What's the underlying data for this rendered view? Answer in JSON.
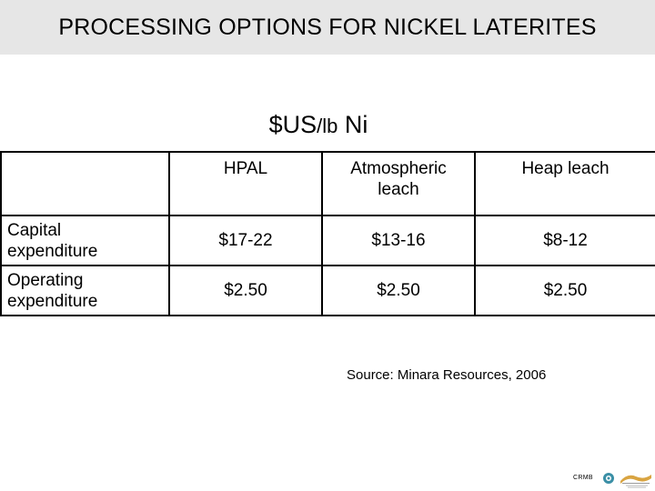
{
  "header": {
    "title": "PROCESSING OPTIONS FOR NICKEL LATERITES"
  },
  "subtitle": {
    "unit_main": "$US",
    "unit_per": "/lb",
    "unit_metal": " Ni"
  },
  "table": {
    "columns": [
      "",
      "HPAL",
      "Atmospheric leach",
      "Heap leach"
    ],
    "rows": [
      {
        "label": "Capital expenditure",
        "values": [
          "$17-22",
          "$13-16",
          "$8-12"
        ]
      },
      {
        "label": "Operating expenditure",
        "values": [
          "$2.50",
          "$2.50",
          "$2.50"
        ]
      }
    ]
  },
  "source": "Source: Minara Resources, 2006",
  "footer": {
    "brand": "CRMB"
  },
  "colors": {
    "title_bar": "#e6e6e6",
    "logo_teal": "#3a8fa6",
    "logo_gold": "#d9a441"
  },
  "icons": [
    "globe-logo-icon",
    "institute-logo-icon"
  ]
}
